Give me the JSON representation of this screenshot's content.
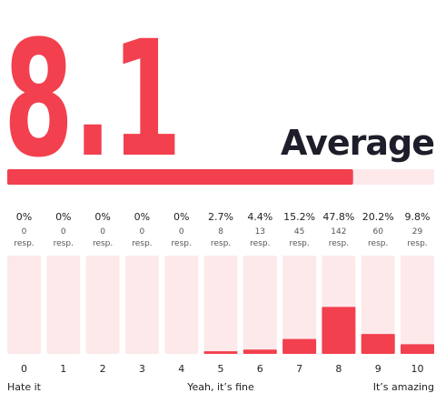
{
  "chart_data": {
    "type": "bar",
    "average": 8.1,
    "average_label": "Average",
    "xlim": [
      0,
      10
    ],
    "categories": [
      "0",
      "1",
      "2",
      "3",
      "4",
      "5",
      "6",
      "7",
      "8",
      "9",
      "10"
    ],
    "values": [
      0,
      0,
      0,
      0,
      0,
      2.7,
      4.4,
      15.2,
      47.8,
      20.2,
      9.8
    ],
    "value_labels": [
      "0%",
      "0%",
      "0%",
      "0%",
      "0%",
      "2.7%",
      "4.4%",
      "15.2%",
      "47.8%",
      "20.2%",
      "9.8%"
    ],
    "responses": [
      0,
      0,
      0,
      0,
      0,
      8,
      13,
      45,
      142,
      60,
      29
    ],
    "responses_unit": "resp.",
    "ylim": [
      0,
      100
    ],
    "color": "#f2404f",
    "track_color": "#fde9ea",
    "scale_labels": [
      "Hate it",
      "Yeah, it’s fine",
      "It’s amazing"
    ]
  }
}
